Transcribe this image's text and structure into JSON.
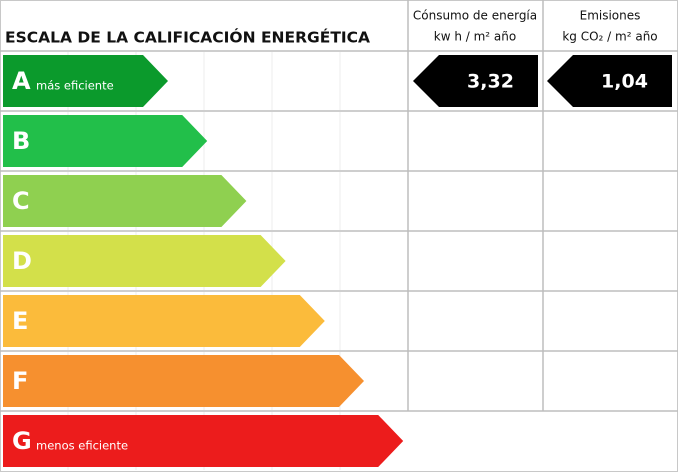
{
  "header": {
    "title": "ESCALA DE LA CALIFICACIÓN ENERGÉTICA",
    "columns": [
      {
        "line1": "Cónsumo de energía",
        "line2": "kw h / m² año"
      },
      {
        "line1": "Emisiones",
        "line2": "kg CO₂ / m² año"
      }
    ]
  },
  "rows": [
    {
      "letter": "A",
      "label": "más eficiente",
      "color": "#0b9a2c"
    },
    {
      "letter": "B",
      "color": "#22bf4a"
    },
    {
      "letter": "C",
      "color": "#8fd050"
    },
    {
      "letter": "D",
      "color": "#d3e04a"
    },
    {
      "letter": "E",
      "color": "#fbbb3b"
    },
    {
      "letter": "F",
      "color": "#f6902f"
    },
    {
      "letter": "G",
      "label": "menos eficiente",
      "color": "#ec1c1c"
    }
  ],
  "values": {
    "energy": "3,32",
    "emissions": "1,04"
  }
}
